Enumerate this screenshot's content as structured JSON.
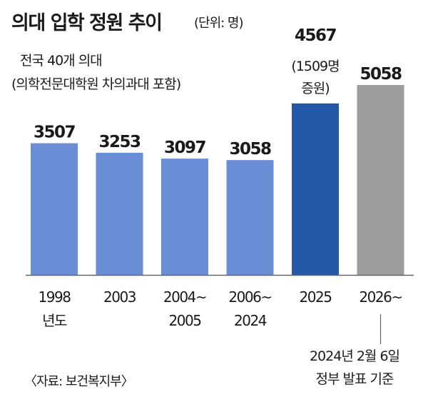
{
  "header": {
    "title": "의대 입학 정원 추이",
    "unit": "(단위: 명)",
    "subtitle_line1": "전국 40개 의대",
    "subtitle_line2": "(의학전문대학원 차의과대 포함)"
  },
  "footer": {
    "source": "〈자료: 보건복지부〉"
  },
  "colors": {
    "bar_light": "#6a8ed6",
    "bar_dark": "#2358a6",
    "bar_gray": "#9b9d9f",
    "axis": "#666666"
  },
  "chart_data": {
    "type": "bar",
    "title": "의대 입학 정원 추이",
    "ylabel": "",
    "xlabel": "",
    "ylim": [
      0,
      5600
    ],
    "categories": [
      [
        "1998",
        "년도"
      ],
      [
        "2003"
      ],
      [
        "2004~",
        "2005"
      ],
      [
        "2006~",
        "2024"
      ],
      [
        "2025"
      ],
      [
        "2026~"
      ]
    ],
    "values": [
      3507,
      3253,
      3097,
      3058,
      4567,
      5058
    ],
    "value_labels": [
      "3507",
      "3253",
      "3097",
      "3058",
      "4567",
      "5058"
    ],
    "bar_colors": [
      "bar_light",
      "bar_light",
      "bar_light",
      "bar_light",
      "bar_dark",
      "bar_gray"
    ],
    "annotations": [
      {
        "category_index": 4,
        "lines": [
          "(1509명",
          "증원)"
        ]
      },
      {
        "category_index": 5,
        "lines": [
          "2024년 2월 6일",
          "정부 발표 기준"
        ]
      }
    ],
    "legend": "none",
    "grid": false
  }
}
